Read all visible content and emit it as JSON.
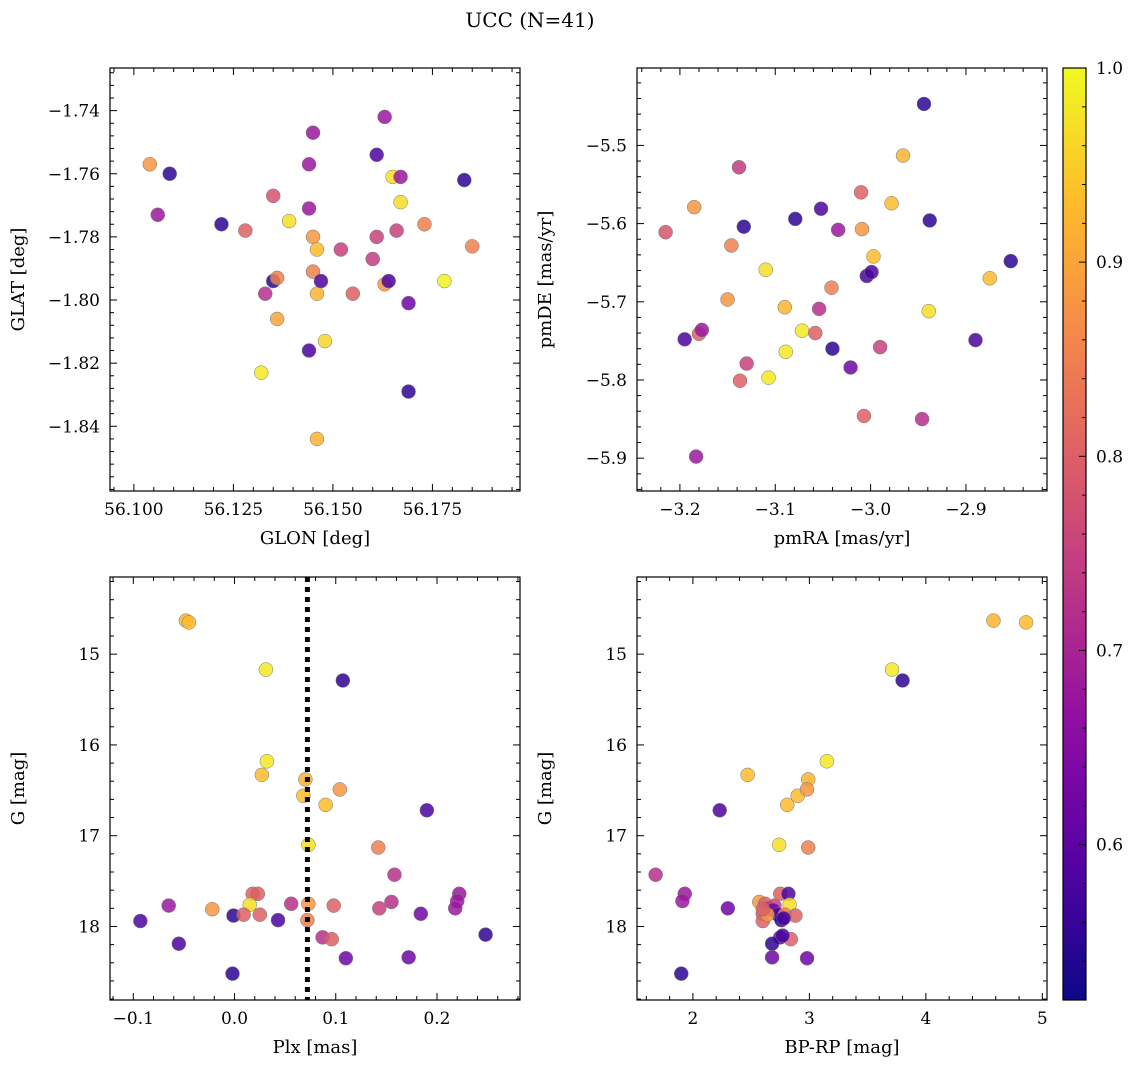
{
  "figure": {
    "title": "UCC (N=41)"
  },
  "colorbar": {
    "colormap": "plasma",
    "vmin": 0.52,
    "vmax": 1.0,
    "ticks": [
      0.6,
      0.7,
      0.8,
      0.9,
      1.0
    ],
    "tick_labels": [
      "0.6",
      "0.7",
      "0.8",
      "0.9",
      "1.0"
    ]
  },
  "chart_data": [
    {
      "type": "scatter",
      "xlabel": "GLON [deg]",
      "ylabel": "GLAT [deg]",
      "xlim": [
        56.094,
        56.197
      ],
      "ylim": [
        -1.8605,
        -1.7265
      ],
      "xticks": [
        56.1,
        56.125,
        56.15,
        56.175
      ],
      "xtick_labels": [
        "56.100",
        "56.125",
        "56.150",
        "56.175"
      ],
      "yticks": [
        -1.84,
        -1.82,
        -1.8,
        -1.78,
        -1.76,
        -1.74
      ],
      "ytick_labels": [
        "−1.84",
        "−1.82",
        "−1.80",
        "−1.78",
        "−1.76",
        "−1.74"
      ],
      "x": [
        56.104,
        56.109,
        56.106,
        56.122,
        56.128,
        56.133,
        56.135,
        56.135,
        56.136,
        56.136,
        56.139,
        56.144,
        56.144,
        56.144,
        56.145,
        56.145,
        56.145,
        56.146,
        56.146,
        56.146,
        56.147,
        56.148,
        56.152,
        56.155,
        56.16,
        56.161,
        56.161,
        56.163,
        56.163,
        56.164,
        56.165,
        56.166,
        56.167,
        56.167,
        56.169,
        56.169,
        56.173,
        56.178,
        56.183,
        56.185,
        56.132
      ],
      "y": [
        -1.757,
        -1.76,
        -1.773,
        -1.776,
        -1.778,
        -1.798,
        -1.767,
        -1.794,
        -1.793,
        -1.806,
        -1.775,
        -1.757,
        -1.771,
        -1.816,
        -1.747,
        -1.78,
        -1.791,
        -1.844,
        -1.784,
        -1.798,
        -1.794,
        -1.813,
        -1.784,
        -1.798,
        -1.787,
        -1.754,
        -1.78,
        -1.795,
        -1.742,
        -1.794,
        -1.761,
        -1.778,
        -1.761,
        -1.769,
        -1.801,
        -1.829,
        -1.776,
        -1.794,
        -1.762,
        -1.783,
        -1.823
      ],
      "color": [
        0.88,
        0.55,
        0.68,
        0.55,
        0.8,
        0.72,
        0.78,
        0.55,
        0.85,
        0.9,
        0.97,
        0.68,
        0.68,
        0.58,
        0.68,
        0.88,
        0.85,
        0.92,
        0.93,
        0.92,
        0.58,
        0.96,
        0.75,
        0.8,
        0.74,
        0.58,
        0.75,
        0.88,
        0.68,
        0.58,
        0.97,
        0.75,
        0.68,
        0.97,
        0.62,
        0.55,
        0.85,
        0.99,
        0.55,
        0.85,
        0.98
      ]
    },
    {
      "type": "scatter",
      "xlabel": "pmRA [mas/yr]",
      "ylabel": "pmDE [mas/yr]",
      "xlim": [
        -3.245,
        -2.815
      ],
      "ylim": [
        -5.942,
        -5.401
      ],
      "xticks": [
        -3.2,
        -3.1,
        -3.0,
        -2.9
      ],
      "xtick_labels": [
        "−3.2",
        "−3.1",
        "−3.0",
        "−2.9"
      ],
      "yticks": [
        -5.9,
        -5.8,
        -5.7,
        -5.6,
        -5.5
      ],
      "ytick_labels": [
        "−5.9",
        "−5.8",
        "−5.7",
        "−5.6",
        "−5.5"
      ],
      "x": [
        -3.215,
        -3.195,
        -3.185,
        -3.183,
        -3.18,
        -3.177,
        -3.15,
        -3.146,
        -3.138,
        -3.137,
        -3.133,
        -3.13,
        -3.11,
        -3.107,
        -3.09,
        -3.089,
        -3.079,
        -3.072,
        -3.058,
        -3.054,
        -3.052,
        -3.041,
        -3.04,
        -3.034,
        -3.021,
        -3.01,
        -3.009,
        -3.007,
        -3.004,
        -2.999,
        -2.997,
        -2.99,
        -2.978,
        -2.966,
        -2.946,
        -2.944,
        -2.939,
        -2.938,
        -2.875,
        -2.89,
        -2.853
      ],
      "y": [
        -5.611,
        -5.748,
        -5.579,
        -5.898,
        -5.741,
        -5.736,
        -5.697,
        -5.628,
        -5.528,
        -5.801,
        -5.604,
        -5.779,
        -5.659,
        -5.797,
        -5.707,
        -5.764,
        -5.594,
        -5.737,
        -5.74,
        -5.709,
        -5.581,
        -5.682,
        -5.76,
        -5.608,
        -5.784,
        -5.56,
        -5.607,
        -5.846,
        -5.667,
        -5.662,
        -5.642,
        -5.758,
        -5.574,
        -5.513,
        -5.85,
        -5.447,
        -5.712,
        -5.596,
        -5.67,
        -5.749,
        -5.648
      ],
      "color": [
        0.78,
        0.58,
        0.88,
        0.68,
        0.8,
        0.68,
        0.88,
        0.85,
        0.74,
        0.8,
        0.55,
        0.75,
        0.97,
        0.98,
        0.92,
        0.98,
        0.55,
        0.98,
        0.8,
        0.72,
        0.58,
        0.85,
        0.55,
        0.68,
        0.62,
        0.8,
        0.88,
        0.8,
        0.58,
        0.58,
        0.93,
        0.75,
        0.93,
        0.92,
        0.72,
        0.55,
        0.97,
        0.55,
        0.93,
        0.58,
        0.55
      ]
    },
    {
      "type": "scatter",
      "xlabel": "Plx [mas]",
      "ylabel": "G [mag]",
      "xlim": [
        -0.123,
        0.282
      ],
      "ylim": [
        18.81,
        14.15
      ],
      "y_inverted": true,
      "xticks": [
        -0.1,
        0.0,
        0.1,
        0.2
      ],
      "xtick_labels": [
        "−0.1",
        "0.0",
        "0.1",
        "0.2"
      ],
      "yticks": [
        15,
        16,
        17,
        18
      ],
      "ytick_labels": [
        "15",
        "16",
        "17",
        "18"
      ],
      "vline": {
        "x": 0.072,
        "style": "dotted",
        "color": "#000000"
      },
      "x": [
        -0.048,
        -0.045,
        0.031,
        0.107,
        0.032,
        0.027,
        0.07,
        0.068,
        0.09,
        0.104,
        0.073,
        0.19,
        0.142,
        0.158,
        0.222,
        0.184,
        0.22,
        0.218,
        0.155,
        0.143,
        0.098,
        0.073,
        0.056,
        0.018,
        0.023,
        0.015,
        0.043,
        -0.022,
        -0.065,
        -0.093,
        0.025,
        -0.001,
        0.009,
        0.087,
        0.096,
        0.072,
        0.11,
        0.172,
        0.248,
        -0.055,
        -0.002
      ],
      "y": [
        14.63,
        14.65,
        15.17,
        15.29,
        16.18,
        16.33,
        16.38,
        16.56,
        16.66,
        16.49,
        17.1,
        16.72,
        17.13,
        17.43,
        17.64,
        17.86,
        17.72,
        17.8,
        17.73,
        17.8,
        17.77,
        17.75,
        17.75,
        17.64,
        17.64,
        17.76,
        17.93,
        17.81,
        17.77,
        17.94,
        17.87,
        17.88,
        17.87,
        18.12,
        18.14,
        17.93,
        18.35,
        18.34,
        18.09,
        18.19,
        18.52
      ],
      "color": [
        0.92,
        0.93,
        0.98,
        0.55,
        0.98,
        0.93,
        0.92,
        0.93,
        0.93,
        0.88,
        0.97,
        0.58,
        0.85,
        0.72,
        0.68,
        0.62,
        0.68,
        0.68,
        0.72,
        0.75,
        0.8,
        0.88,
        0.72,
        0.8,
        0.8,
        0.97,
        0.58,
        0.88,
        0.68,
        0.58,
        0.8,
        0.55,
        0.8,
        0.72,
        0.8,
        0.85,
        0.62,
        0.62,
        0.55,
        0.58,
        0.55
      ]
    },
    {
      "type": "scatter",
      "xlabel": "BP-RP [mag]",
      "ylabel": "G [mag]",
      "xlim": [
        1.52,
        5.04
      ],
      "ylim": [
        18.81,
        14.15
      ],
      "y_inverted": true,
      "xticks": [
        2,
        3,
        4,
        5
      ],
      "xtick_labels": [
        "2",
        "3",
        "4",
        "5"
      ],
      "yticks": [
        15,
        16,
        17,
        18
      ],
      "ytick_labels": [
        "15",
        "16",
        "17",
        "18"
      ],
      "x": [
        4.58,
        4.86,
        3.71,
        3.8,
        3.15,
        2.47,
        2.99,
        2.9,
        2.81,
        2.98,
        2.74,
        2.23,
        2.99,
        1.68,
        1.93,
        1.91,
        2.3,
        2.57,
        2.62,
        2.65,
        2.7,
        2.75,
        2.82,
        2.83,
        2.6,
        2.69,
        2.73,
        2.79,
        2.76,
        2.88,
        2.6,
        2.64,
        2.78,
        2.84,
        2.75,
        2.68,
        2.98,
        2.68,
        2.77,
        2.6,
        1.9
      ],
      "y": [
        14.63,
        14.65,
        15.17,
        15.29,
        16.18,
        16.33,
        16.38,
        16.56,
        16.66,
        16.49,
        17.1,
        16.72,
        17.13,
        17.43,
        17.64,
        17.72,
        17.8,
        17.73,
        17.75,
        17.8,
        17.77,
        17.64,
        17.64,
        17.76,
        17.86,
        17.82,
        17.87,
        17.87,
        17.93,
        17.88,
        17.94,
        17.87,
        17.91,
        18.14,
        18.12,
        18.19,
        18.35,
        18.34,
        18.1,
        17.81,
        18.52
      ],
      "color": [
        0.92,
        0.93,
        0.98,
        0.55,
        0.98,
        0.93,
        0.92,
        0.93,
        0.93,
        0.88,
        0.97,
        0.58,
        0.85,
        0.72,
        0.68,
        0.68,
        0.62,
        0.88,
        0.8,
        0.72,
        0.75,
        0.8,
        0.58,
        0.97,
        0.8,
        0.62,
        0.58,
        0.85,
        0.55,
        0.8,
        0.8,
        0.88,
        0.58,
        0.8,
        0.58,
        0.55,
        0.62,
        0.62,
        0.58,
        0.8,
        0.55
      ]
    }
  ]
}
